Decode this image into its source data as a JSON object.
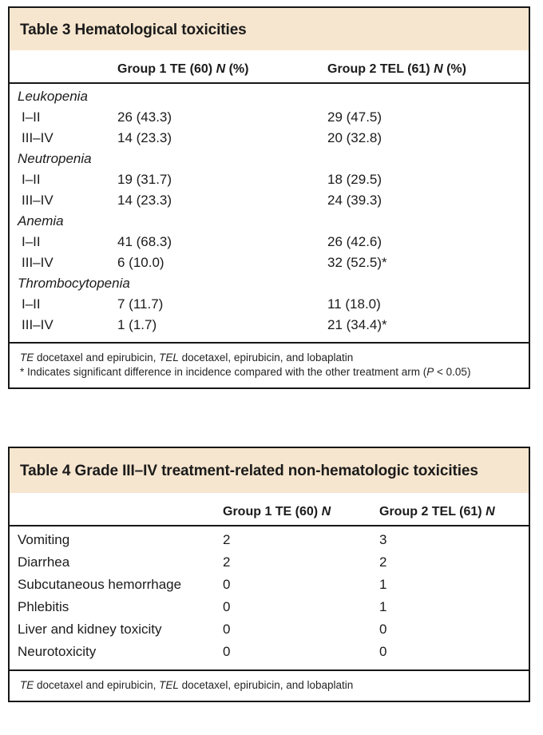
{
  "theme": {
    "band": "#f7e6cf",
    "border": "#171717",
    "text": "#1b1b1b"
  },
  "table3": {
    "title": "Table 3 Hematological toxicities",
    "columns": [
      {
        "pre": "Group 1 TE (60) ",
        "n": "N",
        "suf": " (%)"
      },
      {
        "pre": "Group 2 TEL (61) ",
        "n": "N",
        "suf": " (%)"
      }
    ],
    "rows": [
      {
        "cat": true,
        "label": "Leukopenia",
        "values": [
          "",
          ""
        ]
      },
      {
        "cat": false,
        "label": "I–II",
        "values": [
          "26 (43.3)",
          "29 (47.5)"
        ]
      },
      {
        "cat": false,
        "label": "III–IV",
        "values": [
          "14 (23.3)",
          "20 (32.8)"
        ]
      },
      {
        "cat": true,
        "label": "Neutropenia",
        "values": [
          "",
          ""
        ]
      },
      {
        "cat": false,
        "label": "I–II",
        "values": [
          "19 (31.7)",
          "18 (29.5)"
        ]
      },
      {
        "cat": false,
        "label": "III–IV",
        "values": [
          "14 (23.3)",
          "24 (39.3)"
        ]
      },
      {
        "cat": true,
        "label": "Anemia",
        "values": [
          "",
          ""
        ]
      },
      {
        "cat": false,
        "label": "I–II",
        "values": [
          "41 (68.3)",
          "26 (42.6)"
        ]
      },
      {
        "cat": false,
        "label": "III–IV",
        "values": [
          "6 (10.0)",
          "32 (52.5)*"
        ]
      },
      {
        "cat": true,
        "label": "Thrombocytopenia",
        "values": [
          "",
          ""
        ]
      },
      {
        "cat": false,
        "label": "I–II",
        "values": [
          "7 (11.7)",
          "11 (18.0)"
        ]
      },
      {
        "cat": false,
        "label": "III–IV",
        "values": [
          "1 (1.7)",
          "21 (34.4)*"
        ]
      }
    ],
    "footnotes": [
      [
        "TE",
        " docetaxel and epirubicin, ",
        "TEL",
        " docetaxel, epirubicin, and lobaplatin"
      ],
      [
        "* Indicates significant difference in incidence compared with the other treatment arm (",
        "P",
        " < 0.05)"
      ]
    ]
  },
  "table4": {
    "title": "Table 4 Grade III–IV treatment-related non-hematologic toxicities",
    "columns": [
      {
        "pre": "Group 1 TE (60) ",
        "n": "N",
        "suf": ""
      },
      {
        "pre": "Group 2 TEL (61) ",
        "n": "N",
        "suf": ""
      }
    ],
    "rows": [
      {
        "cat": false,
        "label": "Vomiting",
        "values": [
          "2",
          "3"
        ]
      },
      {
        "cat": false,
        "label": "Diarrhea",
        "values": [
          "2",
          "2"
        ]
      },
      {
        "cat": false,
        "label": "Subcutaneous hemorrhage",
        "values": [
          "0",
          "1"
        ]
      },
      {
        "cat": false,
        "label": "Phlebitis",
        "values": [
          "0",
          "1"
        ]
      },
      {
        "cat": false,
        "label": "Liver and kidney toxicity",
        "values": [
          "0",
          "0"
        ]
      },
      {
        "cat": false,
        "label": "Neurotoxicity",
        "values": [
          "0",
          "0"
        ]
      }
    ],
    "footnotes": [
      [
        "TE",
        " docetaxel and epirubicin, ",
        "TEL",
        " docetaxel, epirubicin, and lobaplatin"
      ]
    ]
  }
}
